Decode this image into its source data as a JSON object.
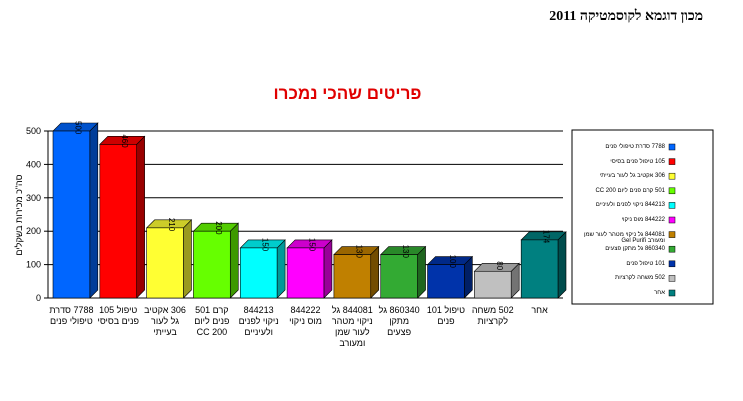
{
  "header": {
    "title": "מכון דוגמא לקוסמטיקה 2011"
  },
  "chart_data": {
    "type": "bar3d",
    "title": "פריטים שהכי נמכרו",
    "y_label": "סה\"כ מכירות בשקלים",
    "categories": [
      "7788 סדרת טיפולי פנים",
      "טיפול 105 פנים בסיסי",
      "306 אקטיב גל לעור בעייתי",
      "קרם 501 פנים ליום 200 CC",
      "844213 ניקוי לפנים ולעיניים",
      "844222 מוס ניקוי",
      "844081 גל ניקוי מטהר לעור שמן ומעורב",
      "860340 גל מתקן פצעים",
      "טיפול 101 פנים",
      "502 משחה לקרציות",
      "אחר"
    ],
    "values": [
      500,
      460,
      210,
      200,
      150,
      150,
      130,
      130,
      100,
      80,
      174
    ],
    "colors": [
      "#0066ff",
      "#ff0000",
      "#ffff33",
      "#66ff00",
      "#00ffff",
      "#ff00ff",
      "#c08000",
      "#33aa33",
      "#0033aa",
      "#c0c0c0",
      "#008080"
    ],
    "legend": [
      "7788 סדרת טיפולי פנים",
      "105 טיפול פנים בסיסי",
      "306 אקטיב גל לעור בעייתי",
      "501 קרם פנים ליום 200 CC",
      "844213 ניקוי לפנים ולעיניים",
      "844222 מוס ניקוי",
      "844081 גל ניקוי מטהר לעור שמן ומעורב Gel Purifi",
      "860340 גל מתקן פצעים",
      "101 טיפול פנים",
      "502 משחה לקרציות",
      "אחר"
    ],
    "ylim": [
      0,
      500
    ],
    "yticks": [
      0,
      100,
      200,
      300,
      400,
      500
    ],
    "grid": true
  }
}
